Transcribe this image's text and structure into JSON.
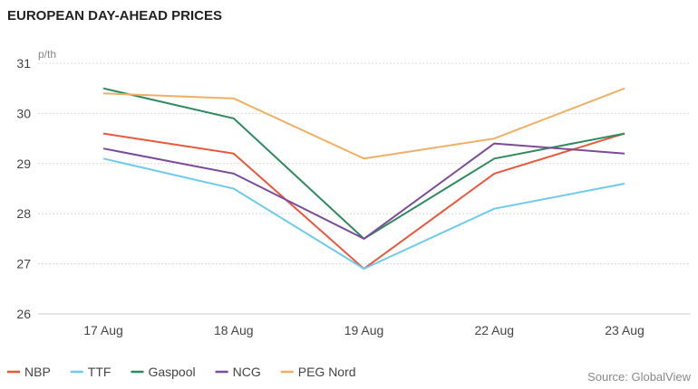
{
  "chart_data": {
    "type": "line",
    "title": "EUROPEAN DAY-AHEAD PRICES",
    "unit_label": "p/th",
    "categories": [
      "17 Aug",
      "18 Aug",
      "19 Aug",
      "22 Aug",
      "23 Aug"
    ],
    "ylim": [
      26,
      31
    ],
    "yticks": [
      26,
      27,
      28,
      29,
      30,
      31
    ],
    "grid": true,
    "legend_position": "bottom-left",
    "series": [
      {
        "name": "NBP",
        "color": "#e8573c",
        "values": [
          29.6,
          29.2,
          26.9,
          28.8,
          29.6
        ]
      },
      {
        "name": "TTF",
        "color": "#6ccbec",
        "values": [
          29.1,
          28.5,
          26.9,
          28.1,
          28.6
        ]
      },
      {
        "name": "Gaspool",
        "color": "#2e8b5f",
        "values": [
          30.5,
          29.9,
          27.5,
          29.1,
          29.6
        ]
      },
      {
        "name": "NCG",
        "color": "#7b4b9a",
        "values": [
          29.3,
          28.8,
          27.5,
          29.4,
          29.2
        ]
      },
      {
        "name": "PEG Nord",
        "color": "#eeb064",
        "values": [
          30.4,
          30.3,
          29.1,
          29.5,
          30.5
        ]
      }
    ],
    "source": "Source: GlobalView"
  }
}
